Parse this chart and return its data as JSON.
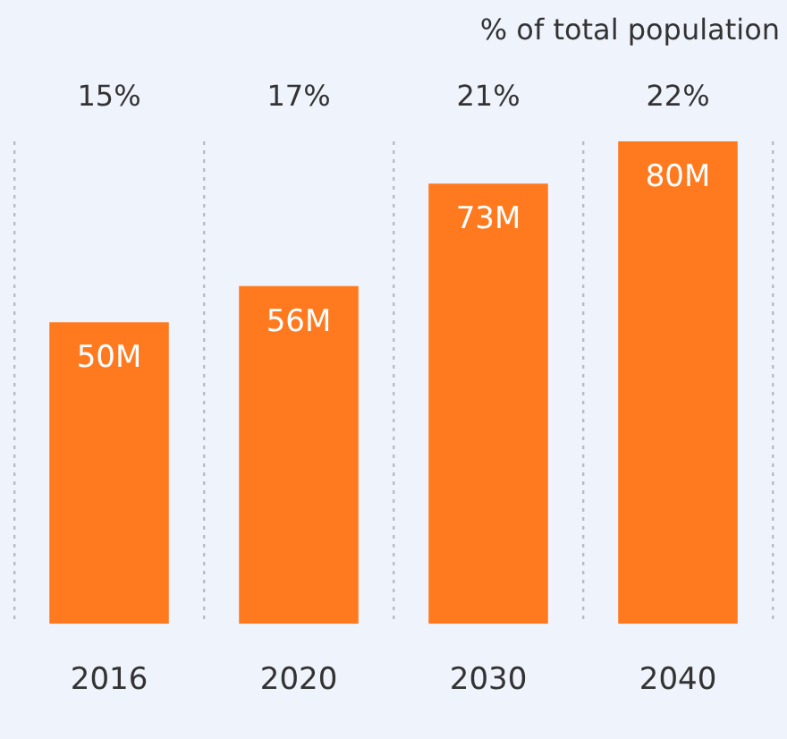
{
  "chart_data": {
    "type": "bar",
    "subtitle": "% of total population",
    "categories": [
      "2016",
      "2020",
      "2030",
      "2040"
    ],
    "values": [
      50,
      56,
      73,
      80
    ],
    "value_labels": [
      "50M",
      "56M",
      "73M",
      "80M"
    ],
    "color": "#ff7a1f",
    "ylim": [
      0,
      80
    ],
    "grid": "x",
    "annotations": [
      "15%",
      "17%",
      "21%",
      "22%"
    ]
  }
}
